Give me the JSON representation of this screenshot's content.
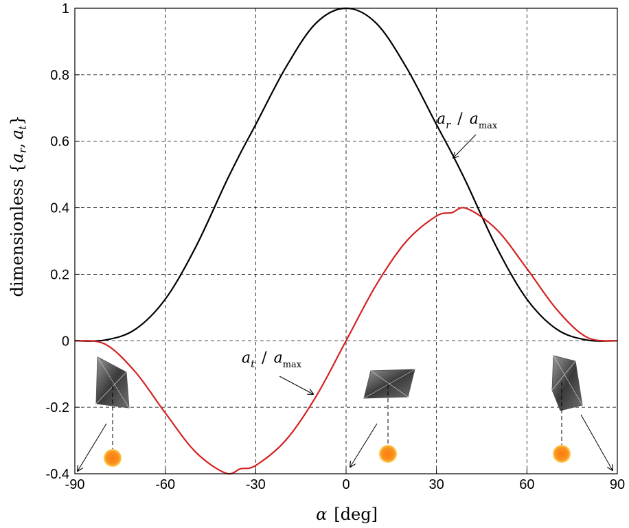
{
  "chart_data": {
    "type": "line",
    "xlabel_symbol": "α",
    "xlabel_unit": "[deg]",
    "ylabel_text": "dimensionless",
    "ylabel_set_open": "{",
    "ylabel_var_a": "a",
    "ylabel_sub_r": "r",
    "ylabel_sep": ",",
    "ylabel_sub_t": "t",
    "ylabel_set_close": "}",
    "xlim": [
      -90,
      90
    ],
    "ylim": [
      -0.4,
      1
    ],
    "xticks": [
      -90,
      -60,
      -30,
      0,
      30,
      60,
      90
    ],
    "xtick_labels": [
      "-90",
      "-60",
      "-30",
      "0",
      "30",
      "60",
      "90"
    ],
    "yticks": [
      -0.4,
      -0.2,
      0,
      0.2,
      0.4,
      0.6,
      0.8,
      1
    ],
    "ytick_labels": [
      "-0.4",
      "-0.2",
      "0",
      "0.2",
      "0.4",
      "0.6",
      "0.8",
      "1"
    ],
    "grid": true,
    "x": [
      -90,
      -80,
      -70,
      -60,
      -50,
      -40,
      -35,
      -30,
      -20,
      -10,
      0,
      10,
      20,
      30,
      35,
      40,
      50,
      60,
      70,
      80,
      90
    ],
    "series": [
      {
        "color": "#000000",
        "values": [
          0,
          0.002,
          0.034,
          0.125,
          0.28,
          0.474,
          0.565,
          0.65,
          0.822,
          0.955,
          1,
          0.955,
          0.822,
          0.65,
          0.565,
          0.474,
          0.28,
          0.125,
          0.034,
          0.002,
          0
        ]
      },
      {
        "color": "#d42020",
        "values": [
          0,
          -0.01,
          -0.093,
          -0.217,
          -0.334,
          -0.398,
          -0.385,
          -0.375,
          -0.299,
          -0.168,
          0,
          0.168,
          0.299,
          0.375,
          0.385,
          0.398,
          0.334,
          0.217,
          0.093,
          0.01,
          0
        ]
      }
    ],
    "annotations": [
      {
        "var": "a",
        "sub": "r",
        "slash": "/",
        "den": "a",
        "den_sub": "max"
      },
      {
        "var": "a",
        "sub": "t",
        "slash": "/",
        "den": "a",
        "den_sub": "max"
      }
    ],
    "sail_icons": [
      "solar-sail-left",
      "solar-sail-center",
      "solar-sail-right"
    ],
    "sun_color": "#f7901e"
  }
}
